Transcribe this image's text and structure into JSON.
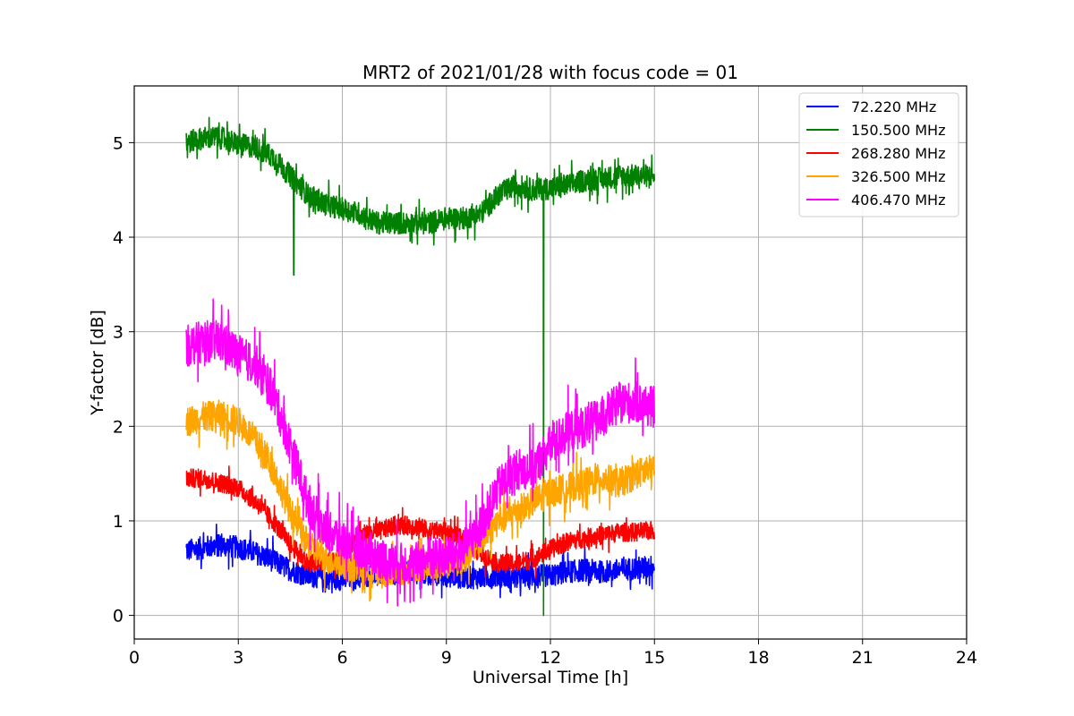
{
  "chart_data": {
    "type": "line",
    "title": "MRT2 of 2021/01/28 with focus code = 01",
    "xlabel": "Universal Time [h]",
    "ylabel": "Y-factor [dB]",
    "xlim": [
      0,
      24
    ],
    "ylim": [
      -0.25,
      5.6
    ],
    "xticks": [
      0,
      3,
      6,
      9,
      12,
      15,
      18,
      21,
      24
    ],
    "yticks": [
      0,
      1,
      2,
      3,
      4,
      5
    ],
    "grid": true,
    "legend_position": "top-right",
    "series": [
      {
        "name": "72.220 MHz",
        "legend_label": " 72.220 MHz",
        "color": "#0000ff",
        "noise": 0.12,
        "x": [
          1.5,
          2,
          2.5,
          3,
          3.5,
          4,
          4.5,
          5,
          5.5,
          6,
          6.5,
          7,
          7.5,
          8,
          8.5,
          9,
          9.5,
          10,
          10.5,
          11,
          11.5,
          12,
          12.5,
          13,
          13.5,
          14,
          14.5,
          15
        ],
        "y": [
          0.68,
          0.72,
          0.74,
          0.72,
          0.66,
          0.58,
          0.48,
          0.42,
          0.4,
          0.38,
          0.4,
          0.44,
          0.44,
          0.46,
          0.44,
          0.42,
          0.4,
          0.4,
          0.42,
          0.4,
          0.42,
          0.42,
          0.46,
          0.48,
          0.46,
          0.48,
          0.5,
          0.52
        ]
      },
      {
        "name": "150.500 MHz",
        "legend_label": "150.500 MHz",
        "color": "#008000",
        "noise": 0.12,
        "x": [
          1.5,
          2,
          2.5,
          3,
          3.5,
          4,
          4.5,
          5,
          5.5,
          6,
          6.5,
          7,
          7.5,
          8,
          8.5,
          9,
          9.5,
          10,
          10.5,
          11,
          11.5,
          12,
          12.5,
          13,
          13.5,
          14,
          14.5,
          15
        ],
        "y": [
          5.0,
          5.05,
          5.05,
          4.98,
          4.95,
          4.85,
          4.65,
          4.45,
          4.35,
          4.3,
          4.25,
          4.15,
          4.15,
          4.15,
          4.15,
          4.2,
          4.2,
          4.25,
          4.45,
          4.55,
          4.5,
          4.52,
          4.55,
          4.6,
          4.62,
          4.65,
          4.65,
          4.65
        ]
      },
      {
        "name": "268.280 MHz",
        "legend_label": "268.280 MHz",
        "color": "#ff0000",
        "noise": 0.1,
        "x": [
          1.5,
          2,
          2.5,
          3,
          3.5,
          4,
          4.5,
          5,
          5.5,
          6,
          6.5,
          7,
          7.5,
          8,
          8.5,
          9,
          9.5,
          10,
          10.5,
          11,
          11.5,
          12,
          12.5,
          13,
          13.5,
          14,
          14.5,
          15
        ],
        "y": [
          1.45,
          1.45,
          1.4,
          1.35,
          1.2,
          1.0,
          0.75,
          0.55,
          0.55,
          0.65,
          0.85,
          0.88,
          0.95,
          0.95,
          0.9,
          0.88,
          0.8,
          0.65,
          0.55,
          0.55,
          0.6,
          0.7,
          0.78,
          0.82,
          0.85,
          0.88,
          0.88,
          0.9
        ]
      },
      {
        "name": "326.500 MHz",
        "legend_label": "326.500 MHz",
        "color": "#ffa500",
        "noise": 0.16,
        "x": [
          1.5,
          2,
          2.5,
          3,
          3.5,
          4,
          4.5,
          5,
          5.5,
          6,
          6.5,
          7,
          7.5,
          8,
          8.5,
          9,
          9.5,
          10,
          10.5,
          11,
          11.5,
          12,
          12.5,
          13,
          13.5,
          14,
          14.5,
          15
        ],
        "y": [
          2.05,
          2.1,
          2.12,
          2.05,
          1.85,
          1.55,
          1.1,
          0.75,
          0.6,
          0.55,
          0.5,
          0.45,
          0.45,
          0.5,
          0.55,
          0.55,
          0.6,
          0.8,
          1.0,
          1.1,
          1.2,
          1.3,
          1.35,
          1.4,
          1.45,
          1.4,
          1.5,
          1.55
        ]
      },
      {
        "name": "406.470 MHz",
        "legend_label": "406.470 MHz",
        "color": "#ff00ff",
        "noise": 0.22,
        "x": [
          1.5,
          2,
          2.5,
          3,
          3.5,
          4,
          4.5,
          5,
          5.5,
          6,
          6.5,
          7,
          7.5,
          8,
          8.5,
          9,
          9.5,
          10,
          10.5,
          11,
          11.5,
          12,
          12.5,
          13,
          13.5,
          14,
          14.5,
          15
        ],
        "y": [
          2.85,
          2.9,
          2.9,
          2.75,
          2.65,
          2.35,
          1.8,
          1.2,
          0.9,
          0.8,
          0.72,
          0.62,
          0.55,
          0.55,
          0.6,
          0.62,
          0.7,
          0.95,
          1.35,
          1.55,
          1.55,
          1.8,
          1.95,
          2.0,
          2.1,
          2.25,
          2.25,
          2.2
        ]
      }
    ],
    "annotations": [
      {
        "series": "150.500 MHz",
        "type": "dip",
        "x": 4.6,
        "y_min": 3.6
      },
      {
        "series": "150.500 MHz",
        "type": "dip",
        "x": 11.8,
        "y_min": 0.0
      }
    ]
  }
}
